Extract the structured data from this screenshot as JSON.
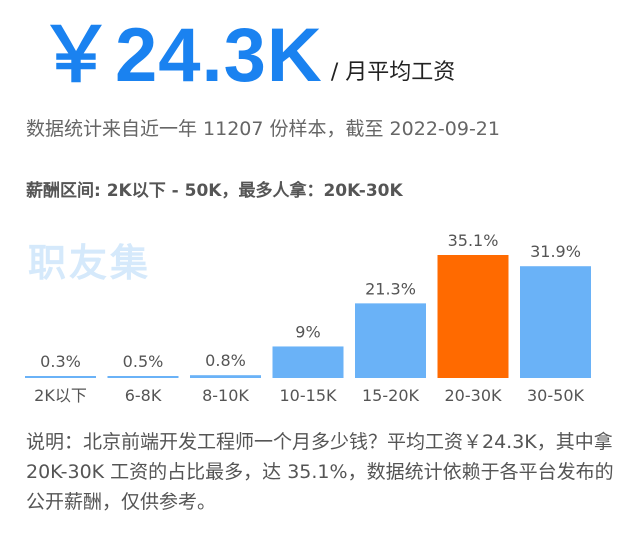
{
  "header": {
    "salary_value": "￥24.3K",
    "salary_unit": "/ 月平均工资"
  },
  "stat_line": "数据统计来自近一年 11207 份样本，截至 2022-09-21",
  "range_line": "薪酬区间: 2K以下 - 50K，最多人拿：20K-30K",
  "watermark": "职友集",
  "chart_data": {
    "type": "bar",
    "categories": [
      "2K以下",
      "6-8K",
      "8-10K",
      "10-15K",
      "15-20K",
      "20-30K",
      "30-50K"
    ],
    "values": [
      0.3,
      0.5,
      0.8,
      9,
      21.3,
      35.1,
      31.9
    ],
    "value_labels": [
      "0.3%",
      "0.5%",
      "0.8%",
      "9%",
      "21.3%",
      "35.1%",
      "31.9%"
    ],
    "highlight_index": 5,
    "colors": {
      "default": "#6ab2f7",
      "highlight": "#ff6a00",
      "text": "#555555"
    },
    "ylim": [
      0,
      35.1
    ],
    "grid": false
  },
  "description": "说明：北京前端开发工程师一个月多少钱？平均工资￥24.3K，其中拿 20K-30K 工资的占比最多，达 35.1%，数据统计依赖于各平台发布的公开薪酬，仅供参考。"
}
